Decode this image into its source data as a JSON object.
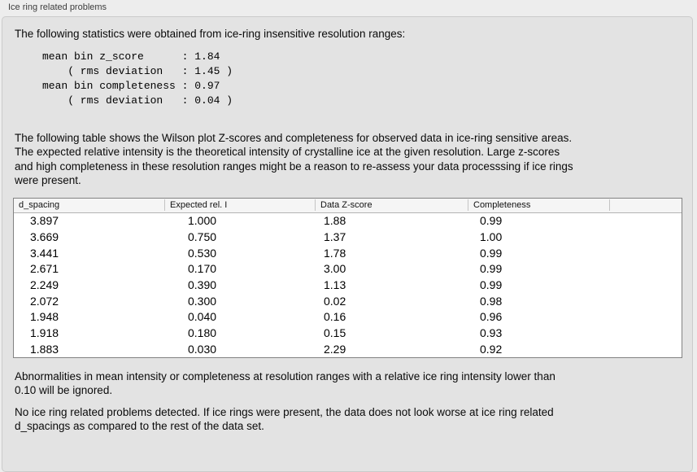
{
  "panel": {
    "title": "Ice ring related problems",
    "intro": "The following statistics were obtained from ice-ring insensitive resolution ranges:",
    "stats_block": "mean bin z_score      : 1.84\n    ( rms deviation   : 1.45 )\nmean bin completeness : 0.97\n    ( rms deviation   : 0.04 )",
    "stats": {
      "mean_bin_z_score": "1.84",
      "z_score_rms_deviation": "1.45",
      "mean_bin_completeness": "0.97",
      "completeness_rms_deviation": "0.04"
    },
    "table_description": "The following table shows the Wilson plot Z-scores and completeness for observed data in ice-ring sensitive areas.\nThe expected relative intensity is the theoretical intensity of crystalline ice at the given resolution. Large z-scores\nand high completeness in these resolution ranges might be a reason to re-assess your data processsing if ice rings\nwere present.",
    "ignore_note": "Abnormalities in mean intensity or completeness at resolution ranges with a relative ice ring intensity lower than\n0.10 will be ignored.",
    "conclusion": "No ice ring related problems detected. If ice rings were present, the data does not look worse at ice ring related\nd_spacings as compared to the rest of the data set."
  },
  "table": {
    "columns": [
      "d_spacing",
      "Expected rel. I",
      "Data Z-score",
      "Completeness",
      ""
    ],
    "rows": [
      [
        "3.897",
        "1.000",
        "1.88",
        "0.99"
      ],
      [
        "3.669",
        "0.750",
        "1.37",
        "1.00"
      ],
      [
        "3.441",
        "0.530",
        "1.78",
        "0.99"
      ],
      [
        "2.671",
        "0.170",
        "3.00",
        "0.99"
      ],
      [
        "2.249",
        "0.390",
        "1.13",
        "0.99"
      ],
      [
        "2.072",
        "0.300",
        "0.02",
        "0.98"
      ],
      [
        "1.948",
        "0.040",
        "0.16",
        "0.96"
      ],
      [
        "1.918",
        "0.180",
        "0.15",
        "0.93"
      ],
      [
        "1.883",
        "0.030",
        "2.29",
        "0.92"
      ]
    ]
  },
  "colors": {
    "page_background": "#ededed",
    "groupbox_background": "#e3e3e3",
    "groupbox_border": "#cbcbcb",
    "table_border": "#828282",
    "table_header_background": "#f5f5f5",
    "table_body_background": "#ffffff",
    "text": "#0a0a0a"
  }
}
